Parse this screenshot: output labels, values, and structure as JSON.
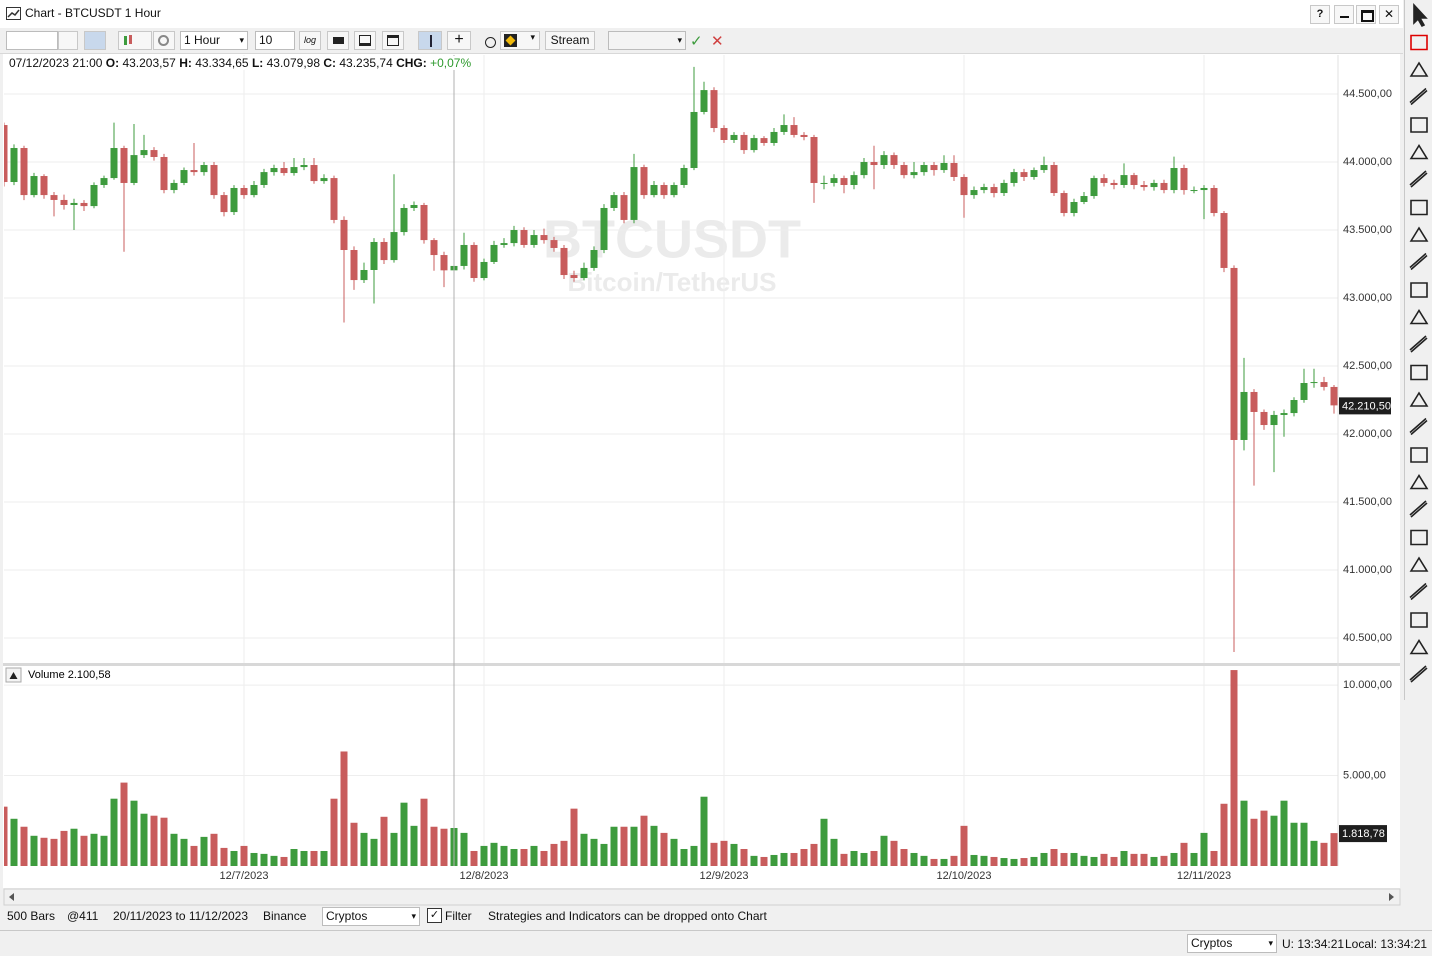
{
  "window": {
    "title": "Chart - BTCUSDT 1 Hour",
    "help": "?"
  },
  "toolbar": {
    "interval": "1 Hour",
    "bar_count": "10",
    "log": "log",
    "stream": "Stream"
  },
  "info": {
    "date": "07/12/2023 21:00",
    "open_label": "O:",
    "open": "43.203,57",
    "high_label": "H:",
    "high": "43.334,65",
    "low_label": "L:",
    "low": "43.079,98",
    "close_label": "C:",
    "close": "43.235,74",
    "change_label": "CHG:",
    "change": "+0,07%"
  },
  "chart_data": {
    "type": "candlestick",
    "watermark": "BTCUSDT",
    "watermark_subtitle": "Bitcoin/TetherUS",
    "up_color": "#3d9b3d",
    "down_color": "#c85c5c",
    "grid": true,
    "xlim": [
      0,
      133.4
    ],
    "xticks": [
      {
        "value": 24,
        "label": "12/7/2023"
      },
      {
        "value": 48,
        "label": "12/8/2023"
      },
      {
        "value": 72,
        "label": "12/9/2023"
      },
      {
        "value": 96,
        "label": "12/10/2023"
      },
      {
        "value": 120,
        "label": "12/11/2023"
      }
    ],
    "ylim": [
      40316,
      44787
    ],
    "yticks": [
      {
        "value": 40500,
        "label": "40.500,00"
      },
      {
        "value": 41000,
        "label": "41.000,00"
      },
      {
        "value": 41500,
        "label": "41.500,00"
      },
      {
        "value": 42000,
        "label": "42.000,00"
      },
      {
        "value": 42500,
        "label": "42.500,00"
      },
      {
        "value": 43000,
        "label": "43.000,00"
      },
      {
        "value": 43500,
        "label": "43.500,00"
      },
      {
        "value": 44000,
        "label": "44.000,00"
      },
      {
        "value": 44500,
        "label": "44.500,00"
      }
    ],
    "last_price_label": "42.210,50",
    "open": [
      44272,
      43853,
      44103,
      43757,
      43897,
      43757,
      43721,
      43684,
      43699,
      43676,
      43831,
      43882,
      44103,
      43846,
      44051,
      44088,
      44037,
      43794,
      43846,
      43941,
      43926,
      43978,
      43757,
      43632,
      43809,
      43757,
      43831,
      43926,
      43956,
      43919,
      43963,
      43978,
      43860,
      43882,
      43574,
      43353,
      43132,
      43206,
      43412,
      43279,
      43485,
      43662,
      43684,
      43426,
      43316,
      43203.57,
      43235.74,
      43390,
      43147,
      43265,
      43390,
      43404,
      43500,
      43390,
      43463,
      43426,
      43368,
      43169,
      43147,
      43221,
      43353,
      43662,
      43757,
      43574,
      43963,
      43757,
      43831,
      43757,
      43831,
      43956,
      44368,
      44529,
      44250,
      44162,
      44199,
      44088,
      44176,
      44140,
      44221,
      44272,
      44199,
      44184,
      43846,
      43846,
      43882,
      43831,
      43904,
      44000,
      43978,
      44051,
      43978,
      43904,
      43926,
      43978,
      43941,
      43993,
      43890,
      43757,
      43794,
      43816,
      43772,
      43846,
      43926,
      43890,
      43941,
      43978,
      43772,
      43625,
      43706,
      43750,
      43882,
      43846,
      43831,
      43904,
      43831,
      43816,
      43846,
      43794,
      43956,
      43794,
      43794,
      43809,
      43625,
      43221,
      41956,
      42309,
      42162,
      42066,
      42140,
      42154,
      42250,
      42375,
      42382,
      42346
    ],
    "high": [
      44290,
      44130,
      44120,
      43920,
      43910,
      43780,
      43760,
      43730,
      43720,
      43850,
      43900,
      44290,
      44120,
      44280,
      44200,
      44110,
      44060,
      43870,
      43960,
      44140,
      44000,
      44000,
      43780,
      43830,
      43830,
      43860,
      43950,
      43980,
      44000,
      44030,
      44030,
      44030,
      43910,
      43900,
      43600,
      43380,
      43260,
      43440,
      43440,
      43910,
      43690,
      43710,
      43700,
      43440,
      43340,
      43334.65,
      43480,
      43410,
      43290,
      43420,
      43440,
      43530,
      43520,
      43500,
      43510,
      43450,
      43390,
      43200,
      43260,
      43380,
      43690,
      43780,
      43780,
      44060,
      43980,
      43860,
      43850,
      43850,
      43980,
      44700,
      44590,
      44550,
      44270,
      44220,
      44220,
      44200,
      44190,
      44250,
      44350,
      44330,
      44220,
      44200,
      43900,
      43910,
      43900,
      43930,
      44030,
      44120,
      44080,
      44070,
      44000,
      44000,
      44000,
      44000,
      44050,
      44050,
      43910,
      43820,
      43840,
      43840,
      43870,
      43950,
      43950,
      43960,
      44040,
      44000,
      43790,
      43730,
      43780,
      43900,
      43910,
      43870,
      43990,
      43920,
      43860,
      43870,
      43870,
      44040,
      43980,
      43820,
      43830,
      43830,
      43640,
      43240,
      42560,
      42330,
      42180,
      42170,
      42180,
      42270,
      42480,
      42480,
      42420,
      42360
    ],
    "low": [
      43820,
      43830,
      43720,
      43740,
      43730,
      43600,
      43650,
      43500,
      43640,
      43660,
      43810,
      43870,
      43340,
      43830,
      44030,
      44010,
      43770,
      43770,
      43830,
      43900,
      43900,
      43730,
      43600,
      43610,
      43730,
      43740,
      43810,
      43900,
      43900,
      43900,
      43940,
      43840,
      43840,
      43550,
      42820,
      43060,
      43110,
      42960,
      43250,
      43260,
      43460,
      43640,
      43400,
      43200,
      43080,
      43079.98,
      43210,
      43120,
      43130,
      43250,
      43370,
      43380,
      43370,
      43370,
      43400,
      43340,
      43140,
      43120,
      43130,
      43200,
      43330,
      43640,
      43550,
      43550,
      43730,
      43740,
      43730,
      43740,
      43810,
      43940,
      44350,
      44220,
      44140,
      44140,
      44060,
      44070,
      44120,
      44120,
      44200,
      44180,
      44160,
      43700,
      43800,
      43820,
      43770,
      43800,
      43880,
      43800,
      43950,
      43950,
      43880,
      43880,
      43900,
      43900,
      43920,
      43860,
      43590,
      43730,
      43770,
      43740,
      43750,
      43820,
      43860,
      43870,
      43920,
      43750,
      43600,
      43600,
      43690,
      43730,
      43820,
      43800,
      43810,
      43800,
      43790,
      43790,
      43770,
      43770,
      43760,
      43770,
      43580,
      43600,
      43190,
      40397,
      41880,
      41620,
      42030,
      41720,
      41980,
      42130,
      42230,
      42340,
      42320,
      42150
    ],
    "close": [
      43853,
      44103,
      43757,
      43897,
      43757,
      43721,
      43684,
      43699,
      43676,
      43831,
      43882,
      44103,
      43846,
      44051,
      44088,
      44037,
      43794,
      43846,
      43941,
      43926,
      43978,
      43757,
      43632,
      43809,
      43757,
      43831,
      43926,
      43956,
      43919,
      43963,
      43978,
      43860,
      43882,
      43574,
      43353,
      43132,
      43206,
      43412,
      43279,
      43485,
      43662,
      43684,
      43426,
      43316,
      43203.57,
      43235.74,
      43390,
      43147,
      43265,
      43390,
      43404,
      43500,
      43390,
      43463,
      43426,
      43368,
      43169,
      43147,
      43221,
      43353,
      43662,
      43757,
      43574,
      43963,
      43757,
      43831,
      43757,
      43831,
      43956,
      44368,
      44529,
      44250,
      44162,
      44199,
      44088,
      44176,
      44140,
      44221,
      44272,
      44199,
      44184,
      43846,
      43846,
      43882,
      43831,
      43904,
      44000,
      43978,
      44051,
      43978,
      43904,
      43926,
      43978,
      43941,
      43993,
      43890,
      43757,
      43794,
      43816,
      43772,
      43846,
      43926,
      43890,
      43941,
      43978,
      43772,
      43625,
      43706,
      43750,
      43882,
      43846,
      43831,
      43904,
      43831,
      43816,
      43846,
      43794,
      43956,
      43794,
      43794,
      43809,
      43625,
      43221,
      41956,
      42309,
      42162,
      42066,
      42140,
      42154,
      42250,
      42375,
      42382,
      42346,
      42210.5
    ],
    "volume_pane": {
      "title": "Volume 2.100,58",
      "ylim": [
        0,
        11055
      ],
      "yticks": [
        {
          "value": 5000,
          "label": "5.000,00"
        },
        {
          "value": 10000,
          "label": "10.000,00"
        }
      ],
      "last_label": "1.818,78",
      "values": [
        3280,
        2610,
        2170,
        1670,
        1560,
        1500,
        1940,
        2060,
        1670,
        1780,
        1670,
        3720,
        4610,
        3610,
        2890,
        2780,
        2670,
        1780,
        1500,
        1110,
        1610,
        1780,
        1000,
        830,
        1110,
        720,
        670,
        560,
        500,
        940,
        830,
        830,
        830,
        3720,
        6330,
        2390,
        1830,
        1500,
        2720,
        1830,
        3500,
        2220,
        3720,
        2170,
        2060,
        2100.58,
        1830,
        830,
        1110,
        1280,
        1110,
        940,
        940,
        1110,
        830,
        1220,
        1390,
        3170,
        1780,
        1500,
        1220,
        2170,
        2170,
        2170,
        2780,
        2220,
        1830,
        1500,
        940,
        1110,
        3830,
        1280,
        1390,
        1220,
        940,
        560,
        500,
        610,
        720,
        720,
        940,
        1220,
        2610,
        1500,
        670,
        830,
        720,
        830,
        1670,
        1390,
        940,
        720,
        560,
        390,
        390,
        560,
        2220,
        610,
        560,
        500,
        440,
        390,
        440,
        500,
        720,
        940,
        720,
        720,
        560,
        500,
        670,
        500,
        830,
        670,
        670,
        500,
        560,
        720,
        1280,
        720,
        1830,
        830,
        3440,
        10830,
        3610,
        2610,
        3060,
        2780,
        3610,
        2390,
        2390,
        1390,
        1280,
        1818.78
      ]
    }
  },
  "status": {
    "bars": "500 Bars",
    "position": "@411",
    "range": "20/11/2023 to 11/12/2023",
    "exchange": "Binance",
    "category": "Cryptos",
    "filter": "Filter",
    "hint": "Strategies and Indicators can be dropped onto Chart"
  },
  "footer": {
    "category": "Cryptos",
    "utc": "U: 13:34:21",
    "local": "Local: 13:34:21"
  }
}
